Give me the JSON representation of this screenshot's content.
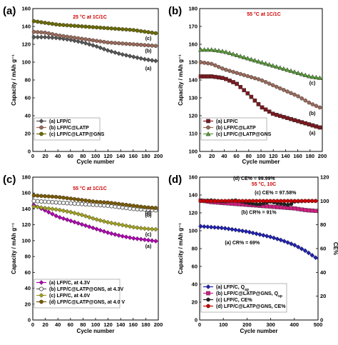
{
  "chart_data": [
    {
      "panel_label": "(a)",
      "type": "line",
      "condition": "25 °C at 1C/1C",
      "condition_color": "#d00000",
      "xlabel": "Cycle number",
      "ylabel": "Capacity / mAh g⁻¹",
      "xlim": [
        0,
        200
      ],
      "ylim": [
        0,
        160
      ],
      "xticks": [
        0,
        20,
        40,
        60,
        80,
        100,
        120,
        140,
        160,
        180,
        200
      ],
      "yticks": [
        0,
        20,
        40,
        60,
        80,
        100,
        120,
        140,
        160
      ],
      "legend_position": "bottom-left",
      "series": [
        {
          "name": "(a) LFP/C",
          "tag": "(a)",
          "color": "#555555",
          "marker": "diamond",
          "x": [
            1,
            20,
            40,
            60,
            80,
            100,
            120,
            140,
            160,
            180,
            200
          ],
          "y": [
            128,
            128,
            127,
            125,
            122,
            118,
            113,
            109,
            106,
            103,
            101
          ]
        },
        {
          "name": "(b) LFP/C@LATP",
          "tag": "(b)",
          "color": "#9a6a5a",
          "marker": "circle",
          "x": [
            1,
            20,
            40,
            60,
            80,
            100,
            120,
            140,
            160,
            180,
            200
          ],
          "y": [
            134,
            133,
            130,
            128,
            126,
            124,
            122,
            121,
            120,
            119,
            118
          ]
        },
        {
          "name": "(c) LFP/C@LATP@GNS",
          "tag": "(c)",
          "color": "#6b6b00",
          "marker": "circle",
          "x": [
            1,
            20,
            40,
            60,
            80,
            100,
            120,
            140,
            160,
            180,
            200
          ],
          "y": [
            146,
            144,
            142,
            141,
            140,
            139,
            138,
            137,
            136,
            134,
            132
          ]
        }
      ]
    },
    {
      "panel_label": "(b)",
      "type": "line",
      "condition": "55 °C at 1C/1C",
      "condition_color": "#d00000",
      "xlabel": "Cycle number",
      "ylabel": "Capacity / mAh g⁻¹",
      "xlim": [
        0,
        200
      ],
      "ylim": [
        100,
        180
      ],
      "xticks": [
        0,
        20,
        40,
        60,
        80,
        100,
        120,
        140,
        160,
        180,
        200
      ],
      "yticks": [
        100,
        110,
        120,
        130,
        140,
        150,
        160,
        170,
        180
      ],
      "legend_position": "bottom-left",
      "series": [
        {
          "name": "(a) LFP/C",
          "tag": "(a)",
          "color": "#7a1a20",
          "marker": "square",
          "x": [
            1,
            20,
            40,
            60,
            80,
            100,
            120,
            140,
            160,
            180,
            200
          ],
          "y": [
            142,
            142,
            141,
            138,
            132,
            125,
            121,
            119,
            117,
            115,
            113
          ]
        },
        {
          "name": "(b) LFP/C@LATP",
          "tag": "(b)",
          "color": "#9a6a5a",
          "marker": "circle",
          "x": [
            1,
            20,
            40,
            60,
            80,
            100,
            120,
            140,
            160,
            180,
            200
          ],
          "y": [
            150,
            149,
            146,
            144,
            142,
            140,
            137,
            134,
            131,
            127,
            124
          ]
        },
        {
          "name": "(c) LFP/C@LATP@GNS",
          "tag": "(c)",
          "color": "#5a9a3a",
          "marker": "triangle",
          "x": [
            1,
            20,
            40,
            60,
            80,
            100,
            120,
            140,
            160,
            180,
            200
          ],
          "y": [
            157,
            157,
            156,
            154,
            152,
            150,
            148,
            146,
            144,
            142,
            141
          ]
        }
      ]
    },
    {
      "panel_label": "(c)",
      "type": "line",
      "condition": "55 °C at 1C/1C",
      "condition_color": "#d00000",
      "xlabel": "Cycle number",
      "ylabel": "Capacity / mAh g⁻¹",
      "xlim": [
        0,
        200
      ],
      "ylim": [
        0,
        180
      ],
      "xticks": [
        0,
        20,
        40,
        60,
        80,
        100,
        120,
        140,
        160,
        180,
        200
      ],
      "yticks": [
        0,
        20,
        40,
        60,
        80,
        100,
        120,
        140,
        160,
        180
      ],
      "legend_position": "bottom-left",
      "series": [
        {
          "name": "(a)  LFP/C, at 4.3V",
          "tag": "(a)",
          "color": "#b000b0",
          "marker": "diamond",
          "x": [
            1,
            20,
            40,
            60,
            80,
            100,
            120,
            140,
            160,
            180,
            200
          ],
          "y": [
            145,
            138,
            130,
            125,
            120,
            115,
            110,
            106,
            103,
            101,
            99
          ]
        },
        {
          "name": "(b)  LFP/C@LATP@GNS, at 4.3V",
          "tag": "(b)",
          "color": "#606060",
          "marker": "circle-open",
          "x": [
            1,
            20,
            40,
            60,
            80,
            100,
            120,
            140,
            160,
            180,
            200
          ],
          "y": [
            150,
            149,
            148,
            147,
            146,
            145,
            144,
            142,
            140,
            139,
            138
          ]
        },
        {
          "name": "(c)  LFP/C, at 4.0V",
          "tag": "(c)",
          "color": "#a0a020",
          "marker": "diamond",
          "x": [
            1,
            20,
            40,
            60,
            80,
            100,
            120,
            140,
            160,
            180,
            200
          ],
          "y": [
            143,
            141,
            139,
            136,
            132,
            127,
            123,
            120,
            117,
            115,
            114
          ]
        },
        {
          "name": "(d)  LFP/C@LATP@GNS, at 4.0 V",
          "tag": "(d)",
          "color": "#7a5a00",
          "marker": "circle",
          "x": [
            1,
            20,
            40,
            60,
            80,
            100,
            120,
            140,
            160,
            180,
            200
          ],
          "y": [
            157,
            156,
            155,
            153,
            151,
            149,
            148,
            146,
            144,
            142,
            141
          ]
        }
      ]
    },
    {
      "panel_label": "(d)",
      "type": "line",
      "condition": "55 °C, 10C",
      "condition_color": "#d00000",
      "xlabel": "Cycle number",
      "ylabel": "Capacity / mAh g⁻¹",
      "ylabel_right": "CE%",
      "xlim": [
        0,
        500
      ],
      "ylim": [
        0,
        160
      ],
      "ylim_right": [
        0,
        120
      ],
      "xticks": [
        0,
        100,
        200,
        300,
        400,
        500
      ],
      "yticks": [
        0,
        20,
        40,
        60,
        80,
        100,
        120,
        140,
        160
      ],
      "yticks_right": [
        0,
        20,
        40,
        60,
        80,
        100,
        120
      ],
      "legend_position": "bottom-left",
      "annotations": [
        {
          "text": "(d) CE% = 99.99%",
          "x": 230,
          "y": 157
        },
        {
          "text": "(c) CE% = 97.58%",
          "x": 320,
          "y": 141
        },
        {
          "text": "(b) CR% = 91%",
          "x": 250,
          "y": 119
        },
        {
          "text": "(a) CR% = 69%",
          "x": 180,
          "y": 85
        }
      ],
      "series": [
        {
          "name": "(a)  LFP/C, Q",
          "sub": "sp",
          "tag": "(a)",
          "color": "#2020b0",
          "marker": "diamond",
          "axis": "left",
          "x": [
            1,
            50,
            100,
            150,
            200,
            250,
            300,
            350,
            400,
            450,
            500
          ],
          "y": [
            105,
            104,
            103,
            101,
            99,
            96,
            93,
            89,
            84,
            77,
            68
          ]
        },
        {
          "name": "(b)  LFP/C@LATP@GNS, Q",
          "sub": "sp",
          "tag": "(b)",
          "color": "#d02080",
          "marker": "square",
          "axis": "left",
          "x": [
            1,
            50,
            100,
            150,
            200,
            250,
            300,
            350,
            400,
            450,
            500
          ],
          "y": [
            134,
            132,
            131,
            130,
            129,
            128,
            127,
            126,
            125,
            123,
            122
          ]
        },
        {
          "name": "(c)  LFP/C, CE%",
          "tag": "(c)",
          "color": "#202020",
          "marker": "circle",
          "axis": "right",
          "x": [
            1,
            50,
            100,
            150,
            200,
            250,
            300,
            330,
            350,
            380,
            400,
            450,
            500
          ],
          "y": [
            100,
            100.5,
            99.5,
            100.5,
            98.5,
            97,
            99.5,
            98,
            97.6,
            96.5,
            99.5,
            100,
            100
          ]
        },
        {
          "name": "(d)  LFP/C@LATP@GNS, CE%",
          "tag": "(d)",
          "color": "#d00000",
          "marker": "circle",
          "axis": "right",
          "x": [
            1,
            50,
            100,
            150,
            200,
            250,
            300,
            350,
            400,
            450,
            500
          ],
          "y": [
            100,
            100,
            100,
            100,
            100,
            100,
            100,
            100,
            100,
            100,
            100
          ]
        }
      ]
    }
  ]
}
